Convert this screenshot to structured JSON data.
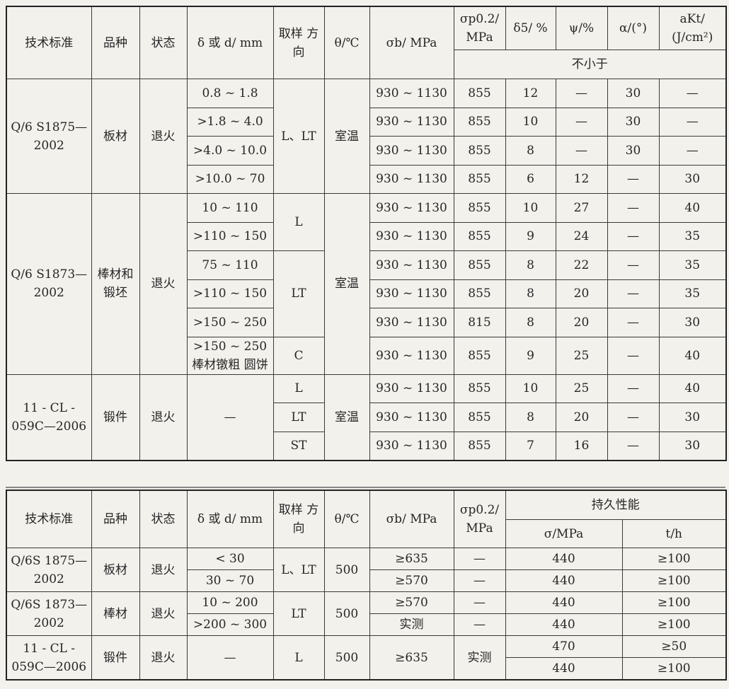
{
  "table1": {
    "headers": {
      "standard": "技术标准",
      "product": "品种",
      "state": "状态",
      "thickness": "δ 或 d/ mm",
      "direction": "取样 方向",
      "temp": "θ/℃",
      "sb": "σb/ MPa",
      "sp": "σp0.2/ MPa",
      "d5": "δ5/ %",
      "psi": "ψ/%",
      "alpha": "α/(°)",
      "akt": "aKt/ (J/cm²)",
      "min_note": "不小于"
    },
    "groups": [
      {
        "standard": "Q/6 S1875—2002",
        "product": "板材",
        "state": "退火",
        "temp": "室温",
        "directions": [
          {
            "dir": "L、LT",
            "rows": [
              {
                "thickness": "0.8 ~ 1.8",
                "sb": "930 ~ 1130",
                "sp": "855",
                "d5": "12",
                "psi": "—",
                "alpha": "30",
                "akt": "—"
              },
              {
                "thickness": ">1.8 ~ 4.0",
                "sb": "930 ~ 1130",
                "sp": "855",
                "d5": "10",
                "psi": "—",
                "alpha": "30",
                "akt": "—"
              },
              {
                "thickness": ">4.0 ~ 10.0",
                "sb": "930 ~ 1130",
                "sp": "855",
                "d5": "8",
                "psi": "—",
                "alpha": "30",
                "akt": "—"
              },
              {
                "thickness": ">10.0 ~ 70",
                "sb": "930 ~ 1130",
                "sp": "855",
                "d5": "6",
                "psi": "12",
                "alpha": "—",
                "akt": "30"
              }
            ]
          }
        ]
      },
      {
        "standard": "Q/6 S1873—2002",
        "product": "棒材和锻坯",
        "state": "退火",
        "temp": "室温",
        "directions": [
          {
            "dir": "L",
            "rows": [
              {
                "thickness": "10 ~ 110",
                "sb": "930 ~ 1130",
                "sp": "855",
                "d5": "10",
                "psi": "27",
                "alpha": "—",
                "akt": "40"
              },
              {
                "thickness": ">110 ~ 150",
                "sb": "930 ~ 1130",
                "sp": "855",
                "d5": "9",
                "psi": "24",
                "alpha": "—",
                "akt": "35"
              }
            ]
          },
          {
            "dir": "LT",
            "rows": [
              {
                "thickness": "75 ~ 110",
                "sb": "930 ~ 1130",
                "sp": "855",
                "d5": "8",
                "psi": "22",
                "alpha": "—",
                "akt": "35"
              },
              {
                "thickness": ">110 ~ 150",
                "sb": "930 ~ 1130",
                "sp": "855",
                "d5": "8",
                "psi": "20",
                "alpha": "—",
                "akt": "35"
              },
              {
                "thickness": ">150 ~ 250",
                "sb": "930 ~ 1130",
                "sp": "815",
                "d5": "8",
                "psi": "20",
                "alpha": "—",
                "akt": "30"
              }
            ]
          },
          {
            "dir": "C",
            "rows": [
              {
                "thickness": ">150 ~ 250 棒材镦粗 圆饼",
                "sb": "930 ~ 1130",
                "sp": "855",
                "d5": "9",
                "psi": "25",
                "alpha": "—",
                "akt": "40"
              }
            ]
          }
        ]
      },
      {
        "standard": "11 - CL - 059C—2006",
        "product": "锻件",
        "state": "退火",
        "temp": "室温",
        "directions": [
          {
            "dir": "L",
            "rows": [
              {
                "thickness": "—",
                "sb": "930 ~ 1130",
                "sp": "855",
                "d5": "10",
                "psi": "25",
                "alpha": "—",
                "akt": "40"
              }
            ]
          },
          {
            "dir": "LT",
            "rows": [
              {
                "sb": "930 ~ 1130",
                "sp": "855",
                "d5": "8",
                "psi": "20",
                "alpha": "—",
                "akt": "30"
              }
            ]
          },
          {
            "dir": "ST",
            "rows": [
              {
                "sb": "930 ~ 1130",
                "sp": "855",
                "d5": "7",
                "psi": "16",
                "alpha": "—",
                "akt": "30"
              }
            ]
          }
        ]
      }
    ]
  },
  "table2": {
    "headers": {
      "standard": "技术标准",
      "product": "品种",
      "state": "状态",
      "thickness": "δ 或 d/ mm",
      "direction": "取样 方向",
      "temp": "θ/℃",
      "sb": "σb/ MPa",
      "sp": "σp0.2/ MPa",
      "endurance": "持久性能",
      "sigma": "σ/MPa",
      "t": "t/h"
    },
    "groups": [
      {
        "standard": "Q/6S 1875—2002",
        "product": "板材",
        "state": "退火",
        "temp": "500",
        "directions": [
          {
            "dir": "L、LT",
            "rows": [
              {
                "thickness": "< 30",
                "sb": "≥635",
                "sp": "—",
                "sigma": "440",
                "t": "≥100"
              },
              {
                "thickness": "30 ~ 70",
                "sb": "≥570",
                "sp": "—",
                "sigma": "440",
                "t": "≥100"
              }
            ]
          }
        ]
      },
      {
        "standard": "Q/6S 1873—2002",
        "product": "棒材",
        "state": "退火",
        "temp": "500",
        "directions": [
          {
            "dir": "LT",
            "rows": [
              {
                "thickness": "10 ~ 200",
                "sb": "≥570",
                "sp": "—",
                "sigma": "440",
                "t": "≥100"
              },
              {
                "thickness": ">200 ~ 300",
                "sb": "实测",
                "sp": "—",
                "sigma": "440",
                "t": "≥100"
              }
            ]
          }
        ]
      },
      {
        "standard": "11 - CL - 059C—2006",
        "product": "锻件",
        "state": "退火",
        "temp": "500",
        "directions": [
          {
            "dir": "L",
            "rows": [
              {
                "thickness": "—",
                "sb": "≥635",
                "sp": "实测",
                "sigma": "470",
                "t": "≥50"
              },
              {
                "sigma": "440",
                "t": "≥100"
              }
            ]
          }
        ]
      }
    ]
  }
}
